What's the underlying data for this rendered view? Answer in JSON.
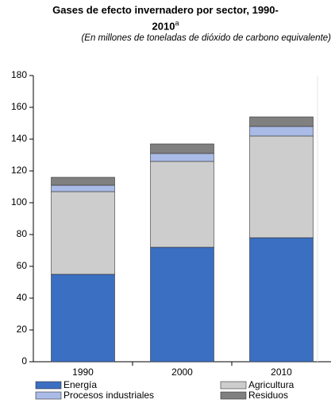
{
  "chart_data": {
    "type": "stacked_bar",
    "title": "Gases de efecto invernadero por sector, 1990-2010",
    "title_note": "a",
    "subtitle": "(En millones de toneladas de dióxido de carbono equivalente)",
    "categories": [
      "1990",
      "2000",
      "2010"
    ],
    "series": [
      {
        "name": "Energía",
        "color": "#3b6fc2",
        "values": [
          55,
          72,
          78
        ]
      },
      {
        "name": "Agricultura",
        "color": "#cdcdcd",
        "values": [
          52,
          54,
          64
        ]
      },
      {
        "name": "Procesos industriales",
        "color": "#a9bbe6",
        "values": [
          4,
          5,
          6
        ]
      },
      {
        "name": "Residuos",
        "color": "#808080",
        "values": [
          5,
          6,
          6
        ]
      }
    ],
    "ylim": [
      0,
      180
    ],
    "yticks": [
      0,
      20,
      40,
      60,
      80,
      100,
      120,
      140,
      160,
      180
    ]
  }
}
